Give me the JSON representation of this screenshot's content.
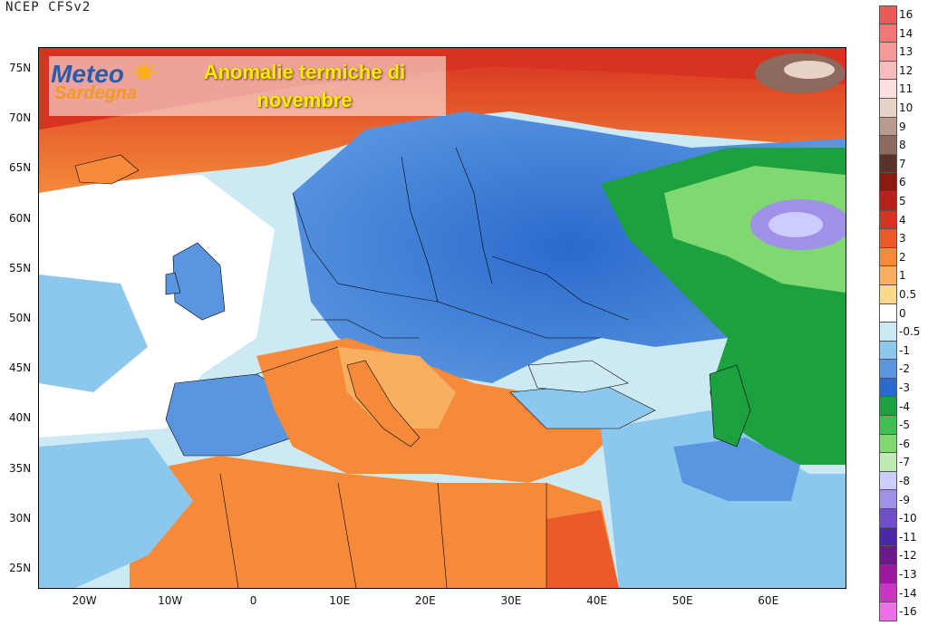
{
  "source": "NCEP CFSv2",
  "logo": {
    "word1": "Meteo",
    "word2": "Sardegna"
  },
  "title": "Anomalie termiche di novembre",
  "lat_labels": [
    "75N",
    "70N",
    "65N",
    "60N",
    "55N",
    "50N",
    "45N",
    "40N",
    "35N",
    "30N",
    "25N"
  ],
  "lon_labels": [
    "20W",
    "10W",
    "0",
    "10E",
    "20E",
    "30E",
    "40E",
    "50E",
    "60E"
  ],
  "colorbar": {
    "labels": [
      "16",
      "14",
      "13",
      "12",
      "11",
      "10",
      "9",
      "8",
      "7",
      "6",
      "5",
      "4",
      "3",
      "2",
      "1",
      "0.5",
      "0",
      "-0.5",
      "-1",
      "-2",
      "-3",
      "-4",
      "-5",
      "-6",
      "-7",
      "-8",
      "-9",
      "-10",
      "-11",
      "-12",
      "-13",
      "-14",
      "-16"
    ],
    "colors": [
      "#e85a5a",
      "#f07878",
      "#f59a9a",
      "#f9bcbc",
      "#fde0e0",
      "#e8d2c8",
      "#b89a8e",
      "#8c6a5e",
      "#5a3228",
      "#8c1a10",
      "#b42218",
      "#d83220",
      "#ec5a28",
      "#f48a3a",
      "#f8b060",
      "#fad88c",
      "#ffffff",
      "#cdeaf4",
      "#8cc8ee",
      "#5a96e0",
      "#2a6acc",
      "#1ca040",
      "#40c050",
      "#80d870",
      "#c0ecb4",
      "#ccccff",
      "#a090e8",
      "#7050c8",
      "#4a28a8",
      "#6a1a8a",
      "#9c1aa0",
      "#c836c0",
      "#ee70e8"
    ]
  },
  "legend_title": ""
}
